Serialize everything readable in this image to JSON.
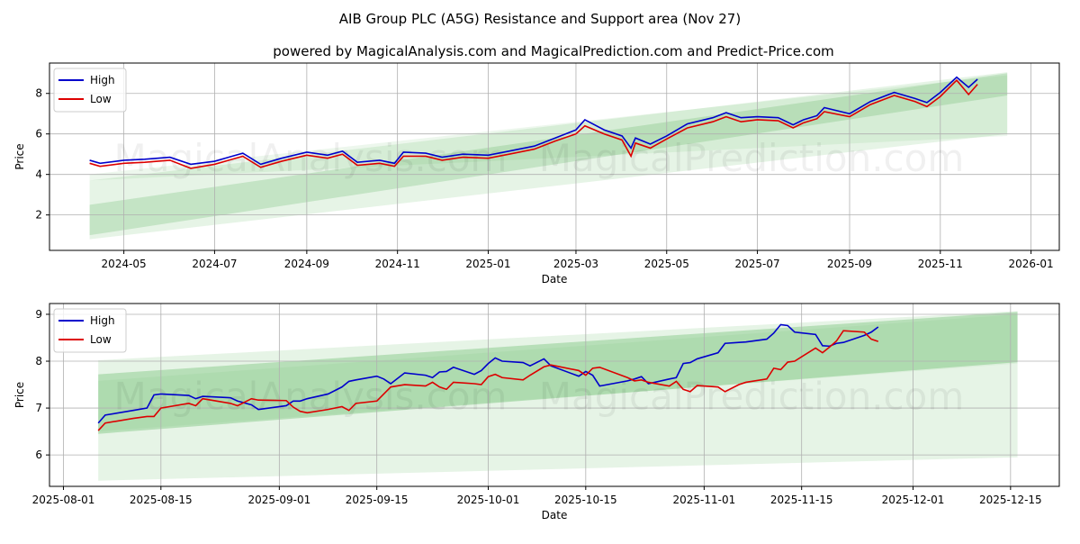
{
  "title": "AIB Group PLC (A5G) Resistance and Support area (Nov 27)",
  "subtitle": "powered by MagicalAnalysis.com and MagicalPrediction.com and Predict-Price.com",
  "watermarks": [
    "MagicalAnalysis.com",
    "MagicalPrediction.com"
  ],
  "colors": {
    "high": "#0000cc",
    "low": "#dd0000",
    "band": "#4caf50"
  },
  "chart_data": [
    {
      "type": "line",
      "xlabel": "Date",
      "ylabel": "Price",
      "xlim": [
        "2024-03-12",
        "2026-01-20"
      ],
      "ylim": [
        0.25,
        9.5
      ],
      "grid": true,
      "legend": {
        "position": "top-left",
        "entries": [
          "High",
          "Low"
        ]
      },
      "xticks": [
        [
          "2024-05-01",
          "2024-05"
        ],
        [
          "2024-07-01",
          "2024-07"
        ],
        [
          "2024-09-01",
          "2024-09"
        ],
        [
          "2024-11-01",
          "2024-11"
        ],
        [
          "2025-01-01",
          "2025-01"
        ],
        [
          "2025-03-01",
          "2025-03"
        ],
        [
          "2025-05-01",
          "2025-05"
        ],
        [
          "2025-07-01",
          "2025-07"
        ],
        [
          "2025-09-01",
          "2025-09"
        ],
        [
          "2025-11-01",
          "2025-11"
        ],
        [
          "2026-01-01",
          "2026-01"
        ]
      ],
      "yticks": [
        2,
        4,
        6,
        8
      ],
      "bands": [
        {
          "start": "2024-04-08",
          "end": "2025-12-16",
          "lower": [
            0.8,
            6.0
          ],
          "upper": [
            3.7,
            9.05
          ],
          "opacity": 0.14
        },
        {
          "start": "2024-04-08",
          "end": "2025-12-16",
          "lower": [
            1.0,
            7.9
          ],
          "upper": [
            2.5,
            9.0
          ],
          "opacity": 0.22
        },
        {
          "start": "2024-04-08",
          "end": "2025-12-16",
          "lower": [
            3.7,
            5.9
          ],
          "upper": [
            4.0,
            8.9
          ],
          "opacity": 0.1
        }
      ],
      "x": [
        "2024-04-08",
        "2024-04-15",
        "2024-05-01",
        "2024-05-15",
        "2024-06-01",
        "2024-06-15",
        "2024-07-01",
        "2024-07-20",
        "2024-08-01",
        "2024-08-15",
        "2024-09-01",
        "2024-09-15",
        "2024-09-25",
        "2024-10-05",
        "2024-10-20",
        "2024-10-30",
        "2024-11-05",
        "2024-11-20",
        "2024-12-01",
        "2024-12-15",
        "2025-01-01",
        "2025-01-15",
        "2025-02-01",
        "2025-02-15",
        "2025-03-01",
        "2025-03-07",
        "2025-03-20",
        "2025-04-01",
        "2025-04-07",
        "2025-04-10",
        "2025-04-20",
        "2025-05-01",
        "2025-05-15",
        "2025-06-01",
        "2025-06-10",
        "2025-06-20",
        "2025-07-01",
        "2025-07-15",
        "2025-07-25",
        "2025-08-01",
        "2025-08-10",
        "2025-08-15",
        "2025-09-01",
        "2025-09-15",
        "2025-10-01",
        "2025-10-15",
        "2025-10-23",
        "2025-11-01",
        "2025-11-12",
        "2025-11-20",
        "2025-11-26"
      ],
      "series": [
        {
          "name": "High",
          "values": [
            4.7,
            4.55,
            4.7,
            4.75,
            4.85,
            4.5,
            4.65,
            5.05,
            4.5,
            4.8,
            5.1,
            4.95,
            5.15,
            4.6,
            4.7,
            4.55,
            5.1,
            5.05,
            4.85,
            5.0,
            4.95,
            5.15,
            5.4,
            5.8,
            6.2,
            6.7,
            6.2,
            5.9,
            5.3,
            5.8,
            5.5,
            5.9,
            6.5,
            6.8,
            7.05,
            6.8,
            6.85,
            6.8,
            6.45,
            6.7,
            6.9,
            7.3,
            7.0,
            7.6,
            8.05,
            7.75,
            7.55,
            8.05,
            8.8,
            8.3,
            8.7
          ]
        },
        {
          "name": "Low",
          "values": [
            4.55,
            4.4,
            4.55,
            4.6,
            4.7,
            4.3,
            4.5,
            4.9,
            4.35,
            4.65,
            4.95,
            4.8,
            5.0,
            4.45,
            4.55,
            4.4,
            4.9,
            4.9,
            4.7,
            4.85,
            4.8,
            5.0,
            5.25,
            5.65,
            6.0,
            6.4,
            6.0,
            5.7,
            4.9,
            5.55,
            5.3,
            5.75,
            6.3,
            6.6,
            6.85,
            6.6,
            6.7,
            6.65,
            6.3,
            6.55,
            6.75,
            7.1,
            6.85,
            7.45,
            7.9,
            7.6,
            7.35,
            7.85,
            8.65,
            7.95,
            8.45
          ]
        }
      ]
    },
    {
      "type": "line",
      "xlabel": "Date",
      "ylabel": "Price",
      "xlim": [
        "2025-07-30",
        "2025-12-22"
      ],
      "ylim": [
        5.33,
        9.23
      ],
      "grid": true,
      "legend": {
        "position": "top-left",
        "entries": [
          "High",
          "Low"
        ]
      },
      "xticks": [
        [
          "2025-08-01",
          "2025-08-01"
        ],
        [
          "2025-08-15",
          "2025-08-15"
        ],
        [
          "2025-09-01",
          "2025-09-01"
        ],
        [
          "2025-09-15",
          "2025-09-15"
        ],
        [
          "2025-10-01",
          "2025-10-01"
        ],
        [
          "2025-10-15",
          "2025-10-15"
        ],
        [
          "2025-11-01",
          "2025-11-01"
        ],
        [
          "2025-11-15",
          "2025-11-15"
        ],
        [
          "2025-12-01",
          "2025-12-01"
        ],
        [
          "2025-12-15",
          "2025-12-15"
        ]
      ],
      "yticks": [
        6,
        7,
        8,
        9
      ],
      "bands": [
        {
          "start": "2025-08-06",
          "end": "2025-12-16",
          "lower": [
            5.45,
            5.95
          ],
          "upper": [
            8.02,
            9.07
          ],
          "opacity": 0.14
        },
        {
          "start": "2025-08-06",
          "end": "2025-12-16",
          "lower": [
            6.45,
            7.98
          ],
          "upper": [
            7.72,
            9.05
          ],
          "opacity": 0.3
        },
        {
          "start": "2025-08-06",
          "end": "2025-12-16",
          "lower": [
            6.5,
            7.95
          ],
          "upper": [
            7.58,
            9.0
          ],
          "opacity": 0.08
        }
      ],
      "x": [
        "2025-08-06",
        "2025-08-07",
        "2025-08-11",
        "2025-08-13",
        "2025-08-14",
        "2025-08-15",
        "2025-08-19",
        "2025-08-20",
        "2025-08-21",
        "2025-08-25",
        "2025-08-26",
        "2025-08-28",
        "2025-08-29",
        "2025-09-02",
        "2025-09-03",
        "2025-09-04",
        "2025-09-05",
        "2025-09-08",
        "2025-09-10",
        "2025-09-11",
        "2025-09-12",
        "2025-09-15",
        "2025-09-16",
        "2025-09-17",
        "2025-09-19",
        "2025-09-22",
        "2025-09-23",
        "2025-09-24",
        "2025-09-25",
        "2025-09-26",
        "2025-09-29",
        "2025-09-30",
        "2025-10-01",
        "2025-10-02",
        "2025-10-03",
        "2025-10-06",
        "2025-10-07",
        "2025-10-09",
        "2025-10-10",
        "2025-10-14",
        "2025-10-15",
        "2025-10-16",
        "2025-10-17",
        "2025-10-21",
        "2025-10-22",
        "2025-10-23",
        "2025-10-24",
        "2025-10-27",
        "2025-10-28",
        "2025-10-29",
        "2025-10-30",
        "2025-10-31",
        "2025-11-03",
        "2025-11-04",
        "2025-11-06",
        "2025-11-07",
        "2025-11-10",
        "2025-11-11",
        "2025-11-12",
        "2025-11-13",
        "2025-11-14",
        "2025-11-17",
        "2025-11-18",
        "2025-11-19",
        "2025-11-20",
        "2025-11-21",
        "2025-11-24",
        "2025-11-25",
        "2025-11-26"
      ],
      "series": [
        {
          "name": "High",
          "values": [
            6.68,
            6.85,
            6.95,
            7.0,
            7.28,
            7.3,
            7.27,
            7.2,
            7.25,
            7.22,
            7.15,
            7.07,
            6.97,
            7.05,
            7.15,
            7.15,
            7.2,
            7.3,
            7.45,
            7.57,
            7.6,
            7.68,
            7.62,
            7.52,
            7.75,
            7.7,
            7.65,
            7.77,
            7.78,
            7.87,
            7.72,
            7.8,
            7.95,
            8.07,
            8.0,
            7.97,
            7.9,
            8.05,
            7.9,
            7.68,
            7.78,
            7.7,
            7.47,
            7.58,
            7.62,
            7.67,
            7.52,
            7.62,
            7.65,
            7.95,
            7.97,
            8.05,
            8.18,
            8.38,
            8.4,
            8.41,
            8.47,
            8.6,
            8.78,
            8.76,
            8.62,
            8.57,
            8.33,
            8.32,
            8.38,
            8.4,
            8.55,
            8.62,
            8.73
          ]
        },
        {
          "name": "Low",
          "values": [
            6.52,
            6.68,
            6.78,
            6.82,
            6.82,
            7.0,
            7.1,
            7.05,
            7.2,
            7.1,
            7.05,
            7.2,
            7.17,
            7.16,
            7.02,
            6.93,
            6.9,
            6.97,
            7.03,
            6.95,
            7.1,
            7.15,
            7.3,
            7.45,
            7.5,
            7.47,
            7.55,
            7.45,
            7.4,
            7.55,
            7.52,
            7.5,
            7.67,
            7.72,
            7.65,
            7.6,
            7.7,
            7.88,
            7.92,
            7.8,
            7.7,
            7.85,
            7.87,
            7.65,
            7.58,
            7.6,
            7.55,
            7.47,
            7.57,
            7.4,
            7.35,
            7.48,
            7.45,
            7.35,
            7.5,
            7.55,
            7.62,
            7.85,
            7.82,
            7.98,
            8.0,
            8.28,
            8.18,
            8.3,
            8.43,
            8.65,
            8.62,
            8.47,
            8.42
          ]
        }
      ]
    }
  ]
}
